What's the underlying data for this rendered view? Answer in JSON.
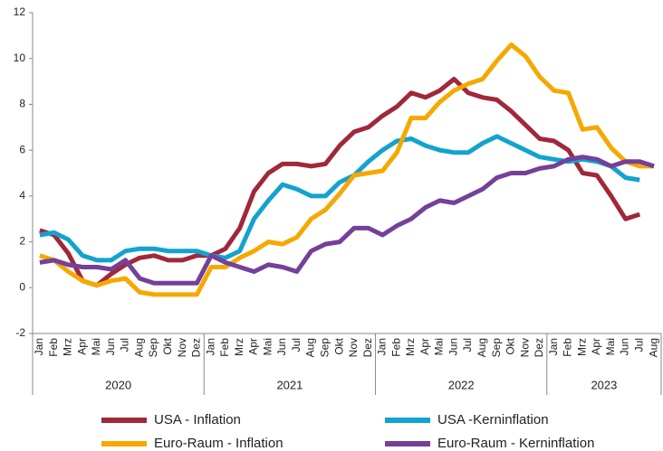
{
  "chart_data": {
    "type": "line",
    "categories": [
      "Jan",
      "Feb",
      "Mrz",
      "Apr",
      "Mai",
      "Jun",
      "Jul",
      "Aug",
      "Sep",
      "Okt",
      "Nov",
      "Dez",
      "Jan",
      "Feb",
      "Mrz",
      "Apr",
      "Mai",
      "Jun",
      "Jul",
      "Aug",
      "Sep",
      "Okt",
      "Nov",
      "Dez",
      "Jan",
      "Feb",
      "Mrz",
      "Apr",
      "Mai",
      "Jun",
      "Jul",
      "Aug",
      "Sep",
      "Okt",
      "Nov",
      "Dez",
      "Jan",
      "Feb",
      "Mrz",
      "Apr",
      "Mai",
      "Jun",
      "Jul",
      "Aug"
    ],
    "years": [
      "2020",
      "2021",
      "2022",
      "2023"
    ],
    "series": [
      {
        "name": "USA - Inflation",
        "color": "#a0283a",
        "values": [
          2.5,
          2.3,
          1.5,
          0.3,
          0.1,
          0.6,
          1.0,
          1.3,
          1.4,
          1.2,
          1.2,
          1.4,
          1.4,
          1.7,
          2.6,
          4.2,
          5.0,
          5.4,
          5.4,
          5.3,
          5.4,
          6.2,
          6.8,
          7.0,
          7.5,
          7.9,
          8.5,
          8.3,
          8.6,
          9.1,
          8.5,
          8.3,
          8.2,
          7.7,
          7.1,
          6.5,
          6.4,
          6.0,
          5.0,
          4.9,
          4.0,
          3.0,
          3.2,
          null
        ]
      },
      {
        "name": "USA -Kerninflation",
        "color": "#12a3cf",
        "values": [
          2.3,
          2.4,
          2.1,
          1.4,
          1.2,
          1.2,
          1.6,
          1.7,
          1.7,
          1.6,
          1.6,
          1.6,
          1.4,
          1.3,
          1.6,
          3.0,
          3.8,
          4.5,
          4.3,
          4.0,
          4.0,
          4.6,
          4.9,
          5.5,
          6.0,
          6.4,
          6.5,
          6.2,
          6.0,
          5.9,
          5.9,
          6.3,
          6.6,
          6.3,
          6.0,
          5.7,
          5.6,
          5.5,
          5.6,
          5.5,
          5.3,
          4.8,
          4.7,
          null
        ]
      },
      {
        "name": "Euro-Raum - Inflation",
        "color": "#f6a800",
        "values": [
          1.4,
          1.2,
          0.7,
          0.3,
          0.1,
          0.3,
          0.4,
          -0.2,
          -0.3,
          -0.3,
          -0.3,
          -0.3,
          0.9,
          0.9,
          1.3,
          1.6,
          2.0,
          1.9,
          2.2,
          3.0,
          3.4,
          4.1,
          4.9,
          5.0,
          5.1,
          5.9,
          7.4,
          7.4,
          8.1,
          8.6,
          8.9,
          9.1,
          9.9,
          10.6,
          10.1,
          9.2,
          8.6,
          8.5,
          6.9,
          7.0,
          6.1,
          5.5,
          5.3,
          5.3
        ]
      },
      {
        "name": "Euro-Raum - Kerninflation",
        "color": "#74409a",
        "values": [
          1.1,
          1.2,
          1.0,
          0.9,
          0.9,
          0.8,
          1.2,
          0.4,
          0.2,
          0.2,
          0.2,
          0.2,
          1.4,
          1.1,
          0.9,
          0.7,
          1.0,
          0.9,
          0.7,
          1.6,
          1.9,
          2.0,
          2.6,
          2.6,
          2.3,
          2.7,
          3.0,
          3.5,
          3.8,
          3.7,
          4.0,
          4.3,
          4.8,
          5.0,
          5.0,
          5.2,
          5.3,
          5.6,
          5.7,
          5.6,
          5.3,
          5.5,
          5.5,
          5.3
        ]
      }
    ],
    "ylim": [
      -2,
      12
    ],
    "yticks": [
      -2,
      0,
      2,
      4,
      6,
      8,
      10,
      12
    ],
    "legend": "bottom"
  }
}
